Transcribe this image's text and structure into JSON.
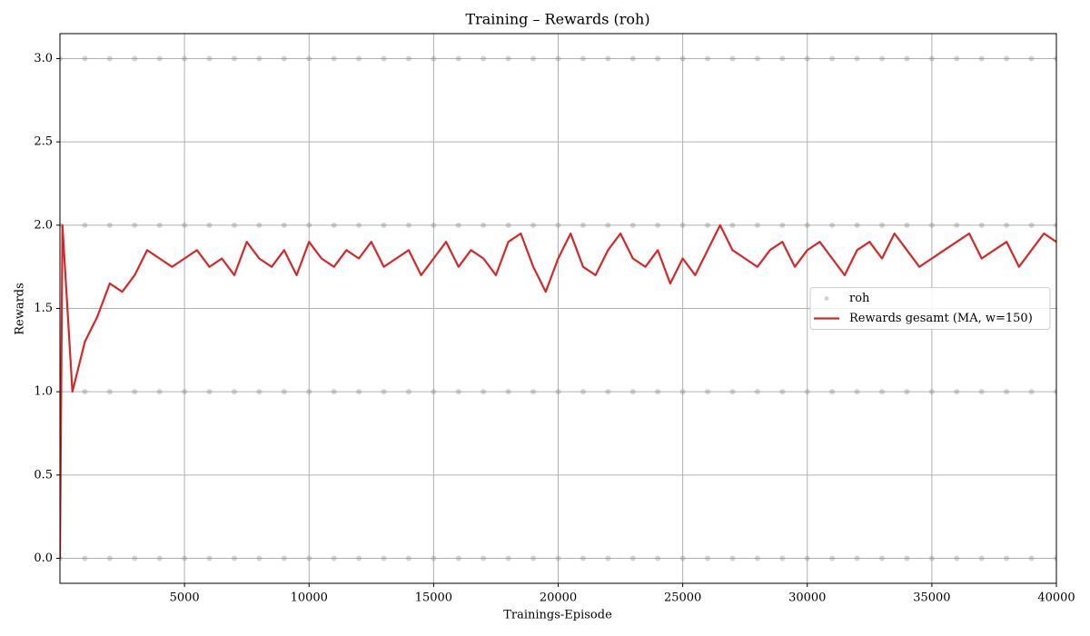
{
  "chart_data": {
    "type": "line",
    "title": "Training – Rewards (roh)",
    "x_label": "Trainings-Episode",
    "y_label": "Rewards",
    "xlim": [
      0,
      40000
    ],
    "xticks": [
      5000,
      10000,
      15000,
      20000,
      25000,
      30000,
      35000,
      40000
    ],
    "ylim": [
      -0.15,
      3.15
    ],
    "yticks": [
      {
        "value": 0,
        "label": "0.0"
      },
      {
        "value": 0.5,
        "label": "0.5"
      },
      {
        "value": 1,
        "label": "1.0"
      },
      {
        "value": 1.5,
        "label": "1.5"
      },
      {
        "value": 2,
        "label": "2.0"
      },
      {
        "value": 2.5,
        "label": "2.5"
      },
      {
        "value": 3,
        "label": "3.0"
      }
    ],
    "grid": true,
    "legend": "center right",
    "series": [
      {
        "name": "roh",
        "type": "scatter",
        "color": "#808080",
        "x": [
          0,
          1000,
          2000,
          3000,
          4000,
          5000,
          6000,
          7000,
          8000,
          9000,
          10000,
          11000,
          12000,
          13000,
          14000,
          15000,
          16000,
          17000,
          18000,
          19000,
          20000,
          21000,
          22000,
          23000,
          24000,
          25000,
          26000,
          27000,
          28000,
          29000,
          30000,
          31000,
          32000,
          33000,
          34000,
          35000,
          36000,
          37000,
          38000,
          39000,
          40000,
          0,
          1000,
          2000,
          3000,
          4000,
          5000,
          6000,
          7000,
          8000,
          9000,
          10000,
          11000,
          12000,
          13000,
          14000,
          15000,
          16000,
          17000,
          18000,
          19000,
          20000,
          21000,
          22000,
          23000,
          24000,
          25000,
          26000,
          27000,
          28000,
          29000,
          30000,
          31000,
          32000,
          33000,
          34000,
          35000,
          36000,
          37000,
          38000,
          39000,
          40000,
          0,
          1000,
          2000,
          3000,
          4000,
          5000,
          6000,
          7000,
          8000,
          9000,
          10000,
          11000,
          12000,
          13000,
          14000,
          15000,
          16000,
          17000,
          18000,
          19000,
          20000,
          21000,
          22000,
          23000,
          24000,
          25000,
          26000,
          27000,
          28000,
          29000,
          30000,
          31000,
          32000,
          33000,
          34000,
          35000,
          36000,
          37000,
          38000,
          39000,
          40000,
          0,
          1000,
          2000,
          3000,
          4000,
          5000,
          6000,
          7000,
          8000,
          9000,
          10000,
          11000,
          12000,
          13000,
          14000,
          15000,
          16000,
          17000,
          18000,
          19000,
          20000,
          21000,
          22000,
          23000,
          24000,
          25000,
          26000,
          27000,
          28000,
          29000,
          30000,
          31000,
          32000,
          33000,
          34000,
          35000,
          36000,
          37000,
          38000,
          39000,
          40000
        ],
        "values": [
          0,
          0,
          0,
          0,
          0,
          0,
          0,
          0,
          0,
          0,
          0,
          0,
          0,
          0,
          0,
          0,
          0,
          0,
          0,
          0,
          0,
          0,
          0,
          0,
          0,
          0,
          0,
          0,
          0,
          0,
          0,
          0,
          0,
          0,
          0,
          0,
          0,
          0,
          0,
          0,
          0,
          1,
          1,
          1,
          1,
          1,
          1,
          1,
          1,
          1,
          1,
          1,
          1,
          1,
          1,
          1,
          1,
          1,
          1,
          1,
          1,
          1,
          1,
          1,
          1,
          1,
          1,
          1,
          1,
          1,
          1,
          1,
          1,
          1,
          1,
          1,
          1,
          1,
          1,
          1,
          1,
          1,
          2,
          2,
          2,
          2,
          2,
          2,
          2,
          2,
          2,
          2,
          2,
          2,
          2,
          2,
          2,
          2,
          2,
          2,
          2,
          2,
          2,
          2,
          2,
          2,
          2,
          2,
          2,
          2,
          2,
          2,
          2,
          2,
          2,
          2,
          2,
          2,
          2,
          2,
          2,
          2,
          2,
          3,
          3,
          3,
          3,
          3,
          3,
          3,
          3,
          3,
          3,
          3,
          3,
          3,
          3,
          3,
          3,
          3,
          3,
          3,
          3,
          3,
          3,
          3,
          3,
          3,
          3,
          3,
          3,
          3,
          3,
          3,
          3,
          3,
          3,
          3,
          3,
          3,
          3,
          3,
          3,
          3
        ]
      },
      {
        "name": "Rewards gesamt (MA, w=150)",
        "type": "line",
        "color": "#d62728",
        "x": [
          0,
          100,
          500,
          1000,
          1500,
          2000,
          2500,
          3000,
          3500,
          4000,
          4500,
          5000,
          5500,
          6000,
          6500,
          7000,
          7500,
          8000,
          8500,
          9000,
          9500,
          10000,
          10500,
          11000,
          11500,
          12000,
          12500,
          13000,
          13500,
          14000,
          14500,
          15000,
          15500,
          16000,
          16500,
          17000,
          17500,
          18000,
          18500,
          19000,
          19500,
          20000,
          20500,
          21000,
          21500,
          22000,
          22500,
          23000,
          23500,
          24000,
          24500,
          25000,
          25500,
          26000,
          26500,
          27000,
          27500,
          28000,
          28500,
          29000,
          29500,
          30000,
          30500,
          31000,
          31500,
          32000,
          32500,
          33000,
          33500,
          34000,
          34500,
          35000,
          35500,
          36000,
          36500,
          37000,
          37500,
          38000,
          38500,
          39000,
          39500,
          40000
        ],
        "values": [
          0,
          2.0,
          1.0,
          1.3,
          1.45,
          1.65,
          1.6,
          1.7,
          1.85,
          1.8,
          1.75,
          1.8,
          1.85,
          1.75,
          1.8,
          1.7,
          1.9,
          1.8,
          1.75,
          1.85,
          1.7,
          1.9,
          1.8,
          1.75,
          1.85,
          1.8,
          1.9,
          1.75,
          1.8,
          1.85,
          1.7,
          1.8,
          1.9,
          1.75,
          1.85,
          1.8,
          1.7,
          1.9,
          1.95,
          1.75,
          1.6,
          1.8,
          1.95,
          1.75,
          1.7,
          1.85,
          1.95,
          1.8,
          1.75,
          1.85,
          1.65,
          1.8,
          1.7,
          1.85,
          2.0,
          1.85,
          1.8,
          1.75,
          1.85,
          1.9,
          1.75,
          1.85,
          1.9,
          1.8,
          1.7,
          1.85,
          1.9,
          1.8,
          1.95,
          1.85,
          1.75,
          1.8,
          1.85,
          1.9,
          1.95,
          1.8,
          1.85,
          1.9,
          1.75,
          1.85,
          1.95,
          1.9
        ]
      }
    ]
  }
}
